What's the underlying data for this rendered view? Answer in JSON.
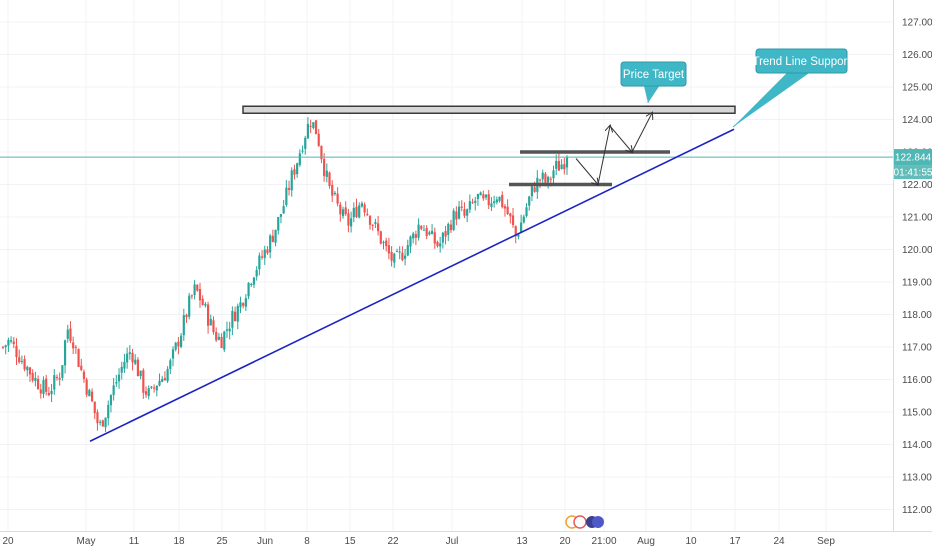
{
  "chart_data": {
    "type": "candlestick",
    "title": "",
    "xlabel": "",
    "ylabel": "",
    "x_tick_labels": [
      "20",
      "May",
      "11",
      "18",
      "25",
      "Jun",
      "8",
      "15",
      "22",
      "Jul",
      "13",
      "20",
      "21:00",
      "Aug",
      "10",
      "17",
      "24",
      "Sep"
    ],
    "y_tick_labels": [
      "112.000",
      "113.000",
      "114.000",
      "115.000",
      "116.000",
      "117.000",
      "118.000",
      "119.000",
      "120.000",
      "121.000",
      "122.000",
      "123.000",
      "124.000",
      "125.000",
      "126.000",
      "127.000"
    ],
    "ylim": [
      111.4,
      127.5
    ],
    "grid": true,
    "current_price": "122.844",
    "countdown": "01:41:55",
    "price_series_close": [
      117.0,
      117.2,
      116.9,
      116.6,
      116.3,
      116.0,
      115.8,
      115.6,
      115.9,
      116.2,
      117.6,
      117.2,
      116.4,
      115.8,
      115.2,
      114.5,
      115.0,
      115.6,
      116.1,
      116.6,
      116.9,
      116.3,
      115.7,
      115.5,
      115.9,
      116.1,
      116.4,
      117.0,
      117.6,
      118.3,
      118.8,
      118.4,
      117.9,
      117.4,
      117.2,
      117.6,
      118.0,
      118.3,
      118.8,
      119.3,
      119.6,
      120.0,
      120.4,
      120.9,
      121.5,
      122.2,
      122.8,
      123.5,
      124.0,
      123.6,
      122.6,
      121.8,
      121.4,
      121.0,
      120.8,
      121.2,
      121.5,
      121.1,
      120.7,
      120.3,
      119.9,
      119.6,
      119.8,
      120.1,
      120.4,
      120.8,
      120.6,
      120.3,
      120.1,
      120.5,
      120.9,
      121.2,
      121.0,
      121.3,
      121.6,
      121.4,
      121.5,
      121.7,
      121.4,
      121.0,
      120.4,
      120.9,
      121.5,
      122.0,
      122.2,
      122.0,
      122.5,
      122.6,
      122.844
    ],
    "annotations": [
      {
        "type": "text_callout",
        "text": "Price Target"
      },
      {
        "type": "text_callout",
        "text": "Trend Line Support"
      },
      {
        "type": "resistance_zone",
        "price": 124.3
      },
      {
        "type": "horizontal_level",
        "price": 123.0
      },
      {
        "type": "horizontal_level",
        "price": 122.0
      },
      {
        "type": "trend_line",
        "from": {
          "x": "May",
          "y": 114.1
        },
        "to": {
          "x": "17",
          "y": 123.7
        }
      }
    ]
  },
  "colors": {
    "up": "#26a69a",
    "down": "#ef5350",
    "trend_line": "#1c23c4",
    "callout": "#3fb7c6",
    "price_line": "#4fb8b5",
    "zone_fill": "#d6d6d6",
    "zone_stroke": "#3a3a3a"
  },
  "watermark_icon": "tradingview-logo-icon"
}
